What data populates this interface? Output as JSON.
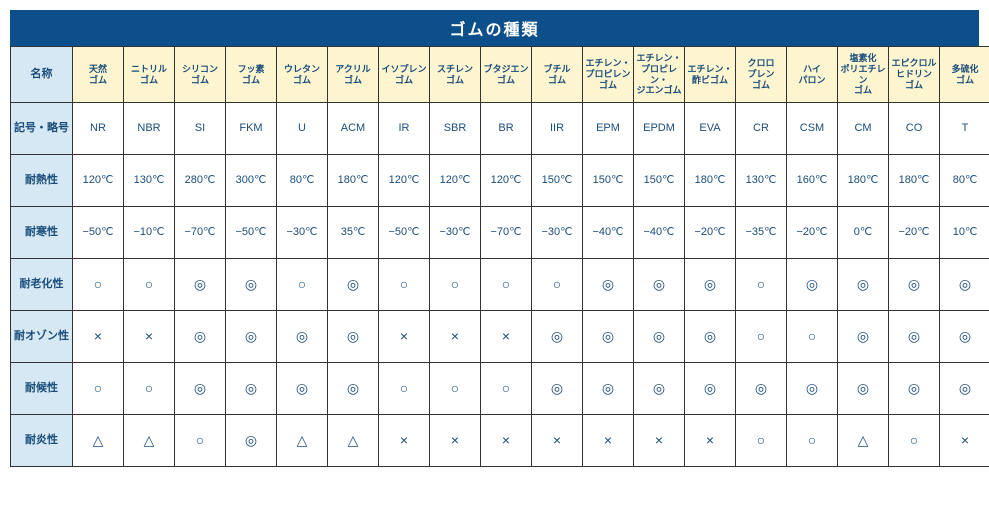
{
  "title": "ゴムの種類",
  "columns_header_label": "名称",
  "columns": [
    "天然\nゴム",
    "ニトリル\nゴム",
    "シリコン\nゴム",
    "フッ素\nゴム",
    "ウレタン\nゴム",
    "アクリル\nゴム",
    "イソプレン\nゴム",
    "スチレン\nゴム",
    "ブタジエン\nゴム",
    "ブチル\nゴム",
    "エチレン・\nプロピレン\nゴム",
    "エチレン・\nプロピレン・\nジエンゴム",
    "エチレン・\n酢ビゴム",
    "クロロ\nプレン\nゴム",
    "ハイ\nパロン",
    "塩素化\nポリエチレン\nゴム",
    "エピクロル\nヒドリン\nゴム",
    "多硫化\nゴム"
  ],
  "rows": [
    {
      "label": "記号・略号",
      "type": "text",
      "cells": [
        "NR",
        "NBR",
        "SI",
        "FKM",
        "U",
        "ACM",
        "IR",
        "SBR",
        "BR",
        "IIR",
        "EPM",
        "EPDM",
        "EVA",
        "CR",
        "CSM",
        "CM",
        "CO",
        "T"
      ]
    },
    {
      "label": "耐熱性",
      "type": "text",
      "cells": [
        "120℃",
        "130℃",
        "280℃",
        "300℃",
        "80℃",
        "180℃",
        "120℃",
        "120℃",
        "120℃",
        "150℃",
        "150℃",
        "150℃",
        "180℃",
        "130℃",
        "160℃",
        "180℃",
        "180℃",
        "80℃"
      ]
    },
    {
      "label": "耐寒性",
      "type": "text",
      "cells": [
        "−50℃",
        "−10℃",
        "−70℃",
        "−50℃",
        "−30℃",
        "35℃",
        "−50℃",
        "−30℃",
        "−70℃",
        "−30℃",
        "−40℃",
        "−40℃",
        "−20℃",
        "−35℃",
        "−20℃",
        "0℃",
        "−20℃",
        "10℃"
      ]
    },
    {
      "label": "耐老化性",
      "type": "sym",
      "cells": [
        "○",
        "○",
        "◎",
        "◎",
        "○",
        "◎",
        "○",
        "○",
        "○",
        "○",
        "◎",
        "◎",
        "◎",
        "○",
        "◎",
        "◎",
        "◎",
        "◎"
      ]
    },
    {
      "label": "耐オゾン性",
      "type": "sym",
      "cells": [
        "×",
        "×",
        "◎",
        "◎",
        "◎",
        "◎",
        "×",
        "×",
        "×",
        "◎",
        "◎",
        "◎",
        "◎",
        "○",
        "○",
        "◎",
        "◎",
        "◎"
      ]
    },
    {
      "label": "耐候性",
      "type": "sym",
      "cells": [
        "○",
        "○",
        "◎",
        "◎",
        "◎",
        "◎",
        "○",
        "○",
        "○",
        "◎",
        "◎",
        "◎",
        "◎",
        "◎",
        "◎",
        "◎",
        "◎",
        "◎"
      ]
    },
    {
      "label": "耐炎性",
      "type": "sym",
      "cells": [
        "△",
        "△",
        "○",
        "◎",
        "△",
        "△",
        "×",
        "×",
        "×",
        "×",
        "×",
        "×",
        "×",
        "○",
        "○",
        "△",
        "○",
        "×"
      ]
    }
  ],
  "colors": {
    "title_bg": "#0d4f8b",
    "title_fg": "#ffffff",
    "rowhead_bg": "#d6e8f3",
    "colhead_bg": "#fdf4d0",
    "text": "#1a4d7a",
    "border": "#333333"
  }
}
